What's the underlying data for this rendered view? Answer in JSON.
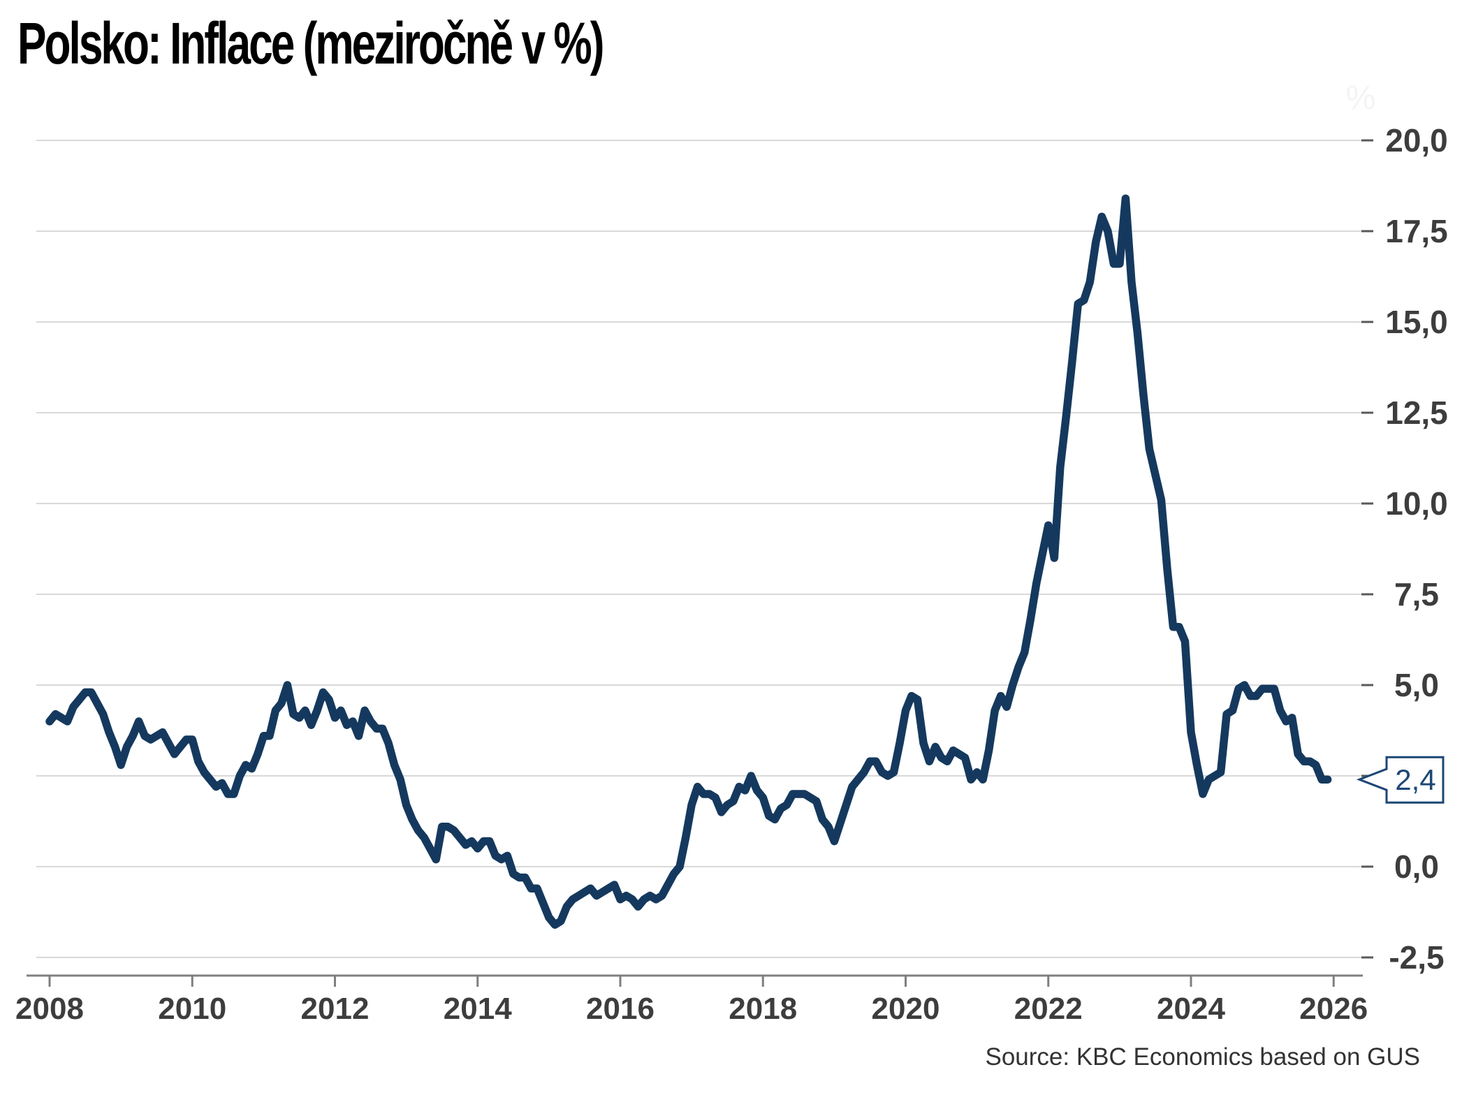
{
  "title": "Polsko: Inflace (meziročně v %)",
  "source": "Source: KBC Economics based on GUS",
  "unit_watermark": "%",
  "callout": {
    "label": "2,4"
  },
  "colors": {
    "line": "#15395e",
    "callout": "#1d4774",
    "grid": "#d9d9d9",
    "grid_tick": "#595959",
    "axis": "#7f7f7f",
    "tick_label": "#3d3d3d",
    "watermark": "#f4f4f4",
    "background": "#ffffff"
  },
  "chart_data": {
    "type": "line",
    "title": "Polsko: Inflace (meziročně v %)",
    "ylabel": "%",
    "xlabel": "",
    "frequency": "monthly",
    "start": "2008-01",
    "end": "2025-12",
    "ylim": [
      -3.1,
      20.8
    ],
    "grid": true,
    "legend": "none",
    "last_value_label": "2,4",
    "y_ticks": [
      {
        "value": 20.0,
        "label": "20,0"
      },
      {
        "value": 17.5,
        "label": "17,5"
      },
      {
        "value": 15.0,
        "label": "15,0"
      },
      {
        "value": 12.5,
        "label": "12,5"
      },
      {
        "value": 10.0,
        "label": "10,0"
      },
      {
        "value": 7.5,
        "label": "7,5"
      },
      {
        "value": 5.0,
        "label": "5,0"
      },
      {
        "value": 2.5,
        "label": ""
      },
      {
        "value": 0.0,
        "label": "0,0"
      },
      {
        "value": -2.5,
        "label": "-2,5"
      }
    ],
    "x_ticks": [
      {
        "year": 2008,
        "label": "2008"
      },
      {
        "year": 2010,
        "label": "2010"
      },
      {
        "year": 2012,
        "label": "2012"
      },
      {
        "year": 2014,
        "label": "2014"
      },
      {
        "year": 2016,
        "label": "2016"
      },
      {
        "year": 2018,
        "label": "2018"
      },
      {
        "year": 2020,
        "label": "2020"
      },
      {
        "year": 2022,
        "label": "2022"
      },
      {
        "year": 2024,
        "label": "2024"
      },
      {
        "year": 2026,
        "label": "2026"
      }
    ],
    "series": [
      {
        "name": "Inflace (meziročně v %)",
        "values": [
          {
            "year": 2008,
            "monthly": [
              4.0,
              4.2,
              4.1,
              4.0,
              4.4,
              4.6,
              4.8,
              4.8,
              4.5,
              4.2,
              3.7,
              3.3
            ]
          },
          {
            "year": 2009,
            "monthly": [
              2.8,
              3.3,
              3.6,
              4.0,
              3.6,
              3.5,
              3.6,
              3.7,
              3.4,
              3.1,
              3.3,
              3.5
            ]
          },
          {
            "year": 2010,
            "monthly": [
              3.5,
              2.9,
              2.6,
              2.4,
              2.2,
              2.3,
              2.0,
              2.0,
              2.5,
              2.8,
              2.7,
              3.1
            ]
          },
          {
            "year": 2011,
            "monthly": [
              3.6,
              3.6,
              4.3,
              4.5,
              5.0,
              4.2,
              4.1,
              4.3,
              3.9,
              4.3,
              4.8,
              4.6
            ]
          },
          {
            "year": 2012,
            "monthly": [
              4.1,
              4.3,
              3.9,
              4.0,
              3.6,
              4.3,
              4.0,
              3.8,
              3.8,
              3.4,
              2.8,
              2.4
            ]
          },
          {
            "year": 2013,
            "monthly": [
              1.7,
              1.3,
              1.0,
              0.8,
              0.5,
              0.2,
              1.1,
              1.1,
              1.0,
              0.8,
              0.6,
              0.7
            ]
          },
          {
            "year": 2014,
            "monthly": [
              0.5,
              0.7,
              0.7,
              0.3,
              0.2,
              0.3,
              -0.2,
              -0.3,
              -0.3,
              -0.6,
              -0.6,
              -1.0
            ]
          },
          {
            "year": 2015,
            "monthly": [
              -1.4,
              -1.6,
              -1.5,
              -1.1,
              -0.9,
              -0.8,
              -0.7,
              -0.6,
              -0.8,
              -0.7,
              -0.6,
              -0.5
            ]
          },
          {
            "year": 2016,
            "monthly": [
              -0.9,
              -0.8,
              -0.9,
              -1.1,
              -0.9,
              -0.8,
              -0.9,
              -0.8,
              -0.5,
              -0.2,
              0.0,
              0.8
            ]
          },
          {
            "year": 2017,
            "monthly": [
              1.7,
              2.2,
              2.0,
              2.0,
              1.9,
              1.5,
              1.7,
              1.8,
              2.2,
              2.1,
              2.5,
              2.1
            ]
          },
          {
            "year": 2018,
            "monthly": [
              1.9,
              1.4,
              1.3,
              1.6,
              1.7,
              2.0,
              2.0,
              2.0,
              1.9,
              1.8,
              1.3,
              1.1
            ]
          },
          {
            "year": 2019,
            "monthly": [
              0.7,
              1.2,
              1.7,
              2.2,
              2.4,
              2.6,
              2.9,
              2.9,
              2.6,
              2.5,
              2.6,
              3.4
            ]
          },
          {
            "year": 2020,
            "monthly": [
              4.3,
              4.7,
              4.6,
              3.4,
              2.9,
              3.3,
              3.0,
              2.9,
              3.2,
              3.1,
              3.0,
              2.4
            ]
          },
          {
            "year": 2021,
            "monthly": [
              2.6,
              2.4,
              3.2,
              4.3,
              4.7,
              4.4,
              5.0,
              5.5,
              5.9,
              6.8,
              7.8,
              8.6
            ]
          },
          {
            "year": 2022,
            "monthly": [
              9.4,
              8.5,
              11.0,
              12.4,
              13.9,
              15.5,
              15.6,
              16.1,
              17.2,
              17.9,
              17.5,
              16.6
            ]
          },
          {
            "year": 2023,
            "monthly": [
              16.6,
              18.4,
              16.1,
              14.7,
              13.0,
              11.5,
              10.8,
              10.1,
              8.2,
              6.6,
              6.6,
              6.2
            ]
          },
          {
            "year": 2024,
            "monthly": [
              3.7,
              2.8,
              2.0,
              2.4,
              2.5,
              2.6,
              4.2,
              4.3,
              4.9,
              5.0,
              4.7,
              4.7
            ]
          },
          {
            "year": 2025,
            "monthly": [
              4.9,
              4.9,
              4.9,
              4.3,
              4.0,
              4.1,
              3.1,
              2.9,
              2.9,
              2.8,
              2.4,
              2.4
            ]
          }
        ]
      }
    ]
  }
}
